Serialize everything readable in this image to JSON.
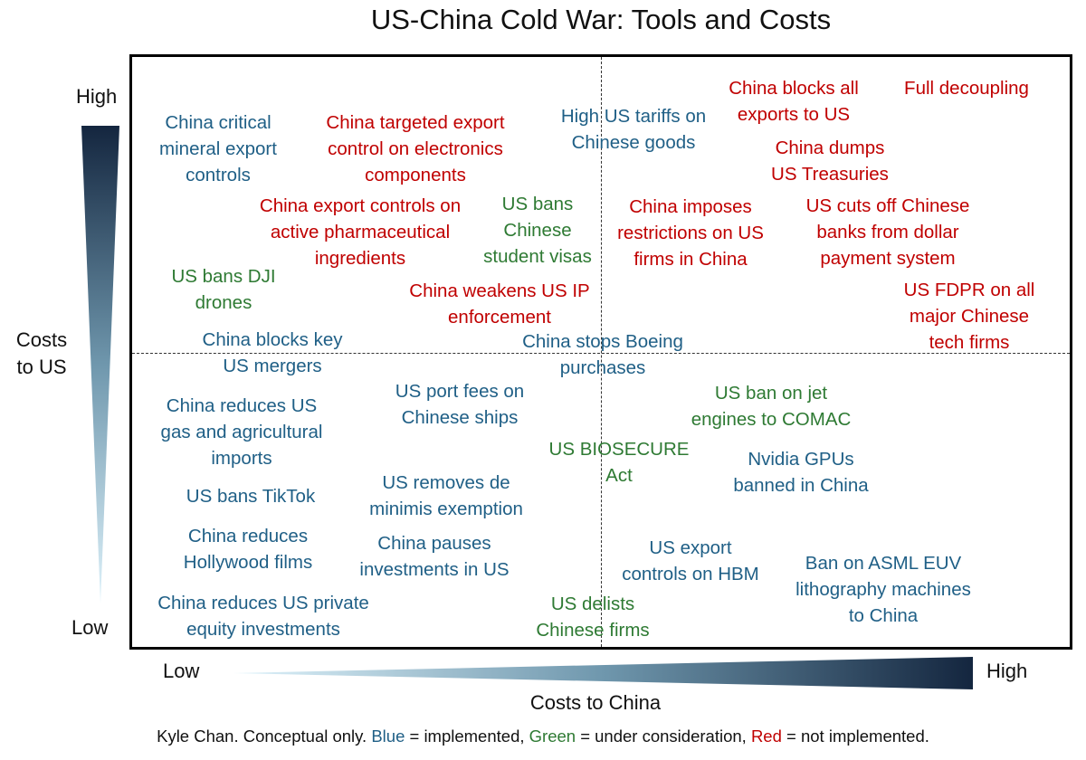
{
  "title": "US-China Cold War: Tools and Costs",
  "colors": {
    "implemented": "#1f5f86",
    "under_consideration": "#2e7a33",
    "not_implemented": "#c00000"
  },
  "y_axis": {
    "label_lines": [
      "Costs",
      "to US"
    ],
    "high": "High",
    "low": "Low"
  },
  "x_axis": {
    "label": "Costs to China",
    "high": "High",
    "low": "Low"
  },
  "footer": {
    "prefix": "Kyle Chan. Conceptual only. ",
    "blue": "Blue",
    "blue_desc": " = implemented, ",
    "green": "Green",
    "green_desc": " = under consideration, ",
    "red": "Red",
    "red_desc": " = not implemented."
  },
  "chart_data": {
    "type": "scatter",
    "title": "US-China Cold War: Tools and Costs",
    "xlabel": "Costs to China",
    "ylabel": "Costs to US",
    "items": [
      {
        "lines": [
          "China critical",
          "mineral export",
          "controls"
        ],
        "status": "implemented"
      },
      {
        "lines": [
          "China targeted export",
          "control on electronics",
          "components"
        ],
        "status": "not_implemented"
      },
      {
        "lines": [
          "High US tariffs on",
          "Chinese goods"
        ],
        "status": "implemented"
      },
      {
        "lines": [
          "China blocks all",
          "exports to US"
        ],
        "status": "not_implemented"
      },
      {
        "lines": [
          "Full decoupling"
        ],
        "status": "not_implemented"
      },
      {
        "lines": [
          "China dumps",
          "US Treasuries"
        ],
        "status": "not_implemented"
      },
      {
        "lines": [
          "China export controls on",
          "active pharmaceutical",
          "ingredients"
        ],
        "status": "not_implemented"
      },
      {
        "lines": [
          "US bans",
          "Chinese",
          "student visas"
        ],
        "status": "under_consideration"
      },
      {
        "lines": [
          "China imposes",
          "restrictions on US",
          "firms in China"
        ],
        "status": "not_implemented"
      },
      {
        "lines": [
          "US cuts off Chinese",
          "banks from dollar",
          "payment system"
        ],
        "status": "not_implemented"
      },
      {
        "lines": [
          "US bans DJI",
          "drones"
        ],
        "status": "under_consideration"
      },
      {
        "lines": [
          "China weakens US IP",
          "enforcement"
        ],
        "status": "not_implemented"
      },
      {
        "lines": [
          "US FDPR on all",
          "major Chinese",
          "tech firms"
        ],
        "status": "not_implemented"
      },
      {
        "lines": [
          "China blocks key",
          "US mergers"
        ],
        "status": "implemented"
      },
      {
        "lines": [
          "China stops Boeing",
          "purchases"
        ],
        "status": "implemented"
      },
      {
        "lines": [
          "China reduces US",
          "gas and agricultural",
          "imports"
        ],
        "status": "implemented"
      },
      {
        "lines": [
          "US port fees on",
          "Chinese ships"
        ],
        "status": "implemented"
      },
      {
        "lines": [
          "US ban on jet",
          "engines to COMAC"
        ],
        "status": "under_consideration"
      },
      {
        "lines": [
          "US BIOSECURE",
          "Act"
        ],
        "status": "under_consideration"
      },
      {
        "lines": [
          "Nvidia GPUs",
          "banned in China"
        ],
        "status": "implemented"
      },
      {
        "lines": [
          "US bans TikTok"
        ],
        "status": "implemented"
      },
      {
        "lines": [
          "US removes de",
          "minimis exemption"
        ],
        "status": "implemented"
      },
      {
        "lines": [
          "China reduces",
          "Hollywood films"
        ],
        "status": "implemented"
      },
      {
        "lines": [
          "China pauses",
          "investments in US"
        ],
        "status": "implemented"
      },
      {
        "lines": [
          "US export",
          "controls on HBM"
        ],
        "status": "implemented"
      },
      {
        "lines": [
          "Ban on ASML EUV",
          "lithography machines",
          "to China"
        ],
        "status": "implemented"
      },
      {
        "lines": [
          "China reduces US private",
          "equity investments"
        ],
        "status": "implemented"
      },
      {
        "lines": [
          "US delists",
          "Chinese firms"
        ],
        "status": "under_consideration"
      }
    ]
  }
}
